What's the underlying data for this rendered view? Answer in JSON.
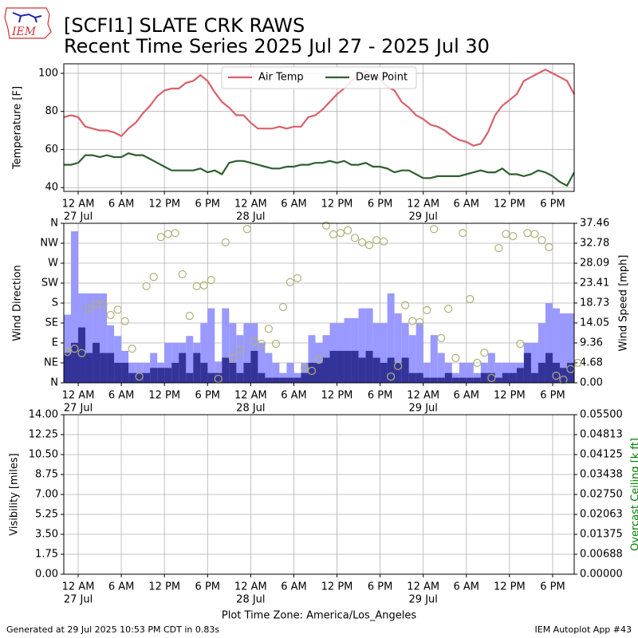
{
  "header": {
    "title": "[SCFI1] SLATE CRK RAWS",
    "subtitle": "Recent Time Series 2025 Jul 27 - 2025 Jul 30",
    "logo_text": "IEM"
  },
  "footer": {
    "generated": "Generated at 29 Jul 2025 10:53 PM CDT in 0.83s",
    "app": "IEM Autoplot App #43",
    "xlabel": "Plot Time Zone: America/Los_Angeles"
  },
  "chart_data": [
    {
      "type": "line",
      "ylabel": "Temperature [F]",
      "grid": true,
      "legend": "upper center",
      "xlim": [
        "2025-07-26 22:00",
        "2025-07-29 21:00"
      ],
      "xticks": [
        {
          "value": "2025-07-27 00:00",
          "label": "12 AM"
        },
        {
          "value": "2025-07-27 06:00",
          "label": "6 AM"
        },
        {
          "value": "2025-07-27 12:00",
          "label": "12 PM"
        },
        {
          "value": "2025-07-27 18:00",
          "label": "6 PM"
        },
        {
          "value": "2025-07-28 00:00",
          "label": "12 AM"
        },
        {
          "value": "2025-07-28 06:00",
          "label": "6 AM"
        },
        {
          "value": "2025-07-28 12:00",
          "label": "12 PM"
        },
        {
          "value": "2025-07-28 18:00",
          "label": "6 PM"
        },
        {
          "value": "2025-07-29 00:00",
          "label": "12 AM"
        },
        {
          "value": "2025-07-29 06:00",
          "label": "6 AM"
        },
        {
          "value": "2025-07-29 12:00",
          "label": "12 PM"
        },
        {
          "value": "2025-07-29 18:00",
          "label": "6 PM"
        }
      ],
      "xtick_dates": [
        {
          "value": "2025-07-27 00:00",
          "label": "27 Jul"
        },
        {
          "value": "2025-07-28 00:00",
          "label": "28 Jul"
        },
        {
          "value": "2025-07-29 00:00",
          "label": "29 Jul"
        }
      ],
      "ylim": [
        38,
        105
      ],
      "yticks": [
        40,
        60,
        80,
        100
      ],
      "x": [
        "2025-07-26 22:00",
        "2025-07-26 23:00",
        "2025-07-27 00:00",
        "2025-07-27 01:00",
        "2025-07-27 02:00",
        "2025-07-27 03:00",
        "2025-07-27 04:00",
        "2025-07-27 05:00",
        "2025-07-27 06:00",
        "2025-07-27 07:00",
        "2025-07-27 08:00",
        "2025-07-27 09:00",
        "2025-07-27 10:00",
        "2025-07-27 11:00",
        "2025-07-27 12:00",
        "2025-07-27 13:00",
        "2025-07-27 14:00",
        "2025-07-27 15:00",
        "2025-07-27 16:00",
        "2025-07-27 17:00",
        "2025-07-27 18:00",
        "2025-07-27 19:00",
        "2025-07-27 20:00",
        "2025-07-27 21:00",
        "2025-07-27 22:00",
        "2025-07-27 23:00",
        "2025-07-28 00:00",
        "2025-07-28 01:00",
        "2025-07-28 02:00",
        "2025-07-28 03:00",
        "2025-07-28 04:00",
        "2025-07-28 05:00",
        "2025-07-28 06:00",
        "2025-07-28 07:00",
        "2025-07-28 08:00",
        "2025-07-28 09:00",
        "2025-07-28 10:00",
        "2025-07-28 11:00",
        "2025-07-28 12:00",
        "2025-07-28 13:00",
        "2025-07-28 14:00",
        "2025-07-28 15:00",
        "2025-07-28 16:00",
        "2025-07-28 17:00",
        "2025-07-28 18:00",
        "2025-07-28 19:00",
        "2025-07-28 20:00",
        "2025-07-28 21:00",
        "2025-07-28 22:00",
        "2025-07-28 23:00",
        "2025-07-29 00:00",
        "2025-07-29 01:00",
        "2025-07-29 02:00",
        "2025-07-29 03:00",
        "2025-07-29 04:00",
        "2025-07-29 05:00",
        "2025-07-29 06:00",
        "2025-07-29 07:00",
        "2025-07-29 08:00",
        "2025-07-29 09:00",
        "2025-07-29 10:00",
        "2025-07-29 11:00",
        "2025-07-29 12:00",
        "2025-07-29 13:00",
        "2025-07-29 14:00",
        "2025-07-29 15:00",
        "2025-07-29 16:00",
        "2025-07-29 17:00",
        "2025-07-29 18:00",
        "2025-07-29 19:00",
        "2025-07-29 20:00",
        "2025-07-29 21:00"
      ],
      "series": [
        {
          "name": "Air Temp",
          "color": "#d9606a",
          "values": [
            77,
            78,
            77,
            72,
            71,
            70,
            70,
            69,
            67,
            71,
            74,
            79,
            83,
            88,
            91,
            92,
            92,
            95,
            96,
            99,
            96,
            90,
            85,
            82,
            78,
            78,
            74,
            71,
            71,
            71,
            72,
            71,
            72,
            72,
            77,
            78,
            81,
            85,
            89,
            92,
            96,
            99,
            101,
            99,
            97,
            93,
            91,
            85,
            82,
            78,
            76,
            73,
            72,
            70,
            67,
            65,
            64,
            62,
            63,
            69,
            78,
            83,
            86,
            89,
            96,
            98,
            100,
            102,
            100,
            98,
            96,
            89
          ]
        },
        {
          "name": "Dew Point",
          "color": "#2f5f2f",
          "values": [
            52,
            52,
            53,
            57,
            57,
            56,
            57,
            56,
            56,
            58,
            57,
            57,
            55,
            53,
            51,
            49,
            49,
            49,
            49,
            50,
            48,
            49,
            47,
            53,
            54,
            54,
            53,
            52,
            51,
            50,
            50,
            51,
            51,
            52,
            52,
            53,
            53,
            54,
            53,
            54,
            52,
            52,
            53,
            51,
            51,
            50,
            48,
            49,
            49,
            47,
            45,
            45,
            46,
            46,
            46,
            46,
            47,
            48,
            49,
            48,
            48,
            50,
            47,
            47,
            46,
            47,
            49,
            48,
            46,
            43,
            41,
            48
          ]
        }
      ]
    },
    {
      "type": "bar",
      "ylabel": "Wind Direction",
      "y2label": "Wind Speed [mph]",
      "grid": true,
      "xlim": [
        "2025-07-26 22:00",
        "2025-07-29 21:00"
      ],
      "xticks": [
        {
          "value": "2025-07-27 00:00",
          "label": "12 AM"
        },
        {
          "value": "2025-07-27 06:00",
          "label": "6 AM"
        },
        {
          "value": "2025-07-27 12:00",
          "label": "12 PM"
        },
        {
          "value": "2025-07-27 18:00",
          "label": "6 PM"
        },
        {
          "value": "2025-07-28 00:00",
          "label": "12 AM"
        },
        {
          "value": "2025-07-28 06:00",
          "label": "6 AM"
        },
        {
          "value": "2025-07-28 12:00",
          "label": "12 PM"
        },
        {
          "value": "2025-07-28 18:00",
          "label": "6 PM"
        },
        {
          "value": "2025-07-29 00:00",
          "label": "12 AM"
        },
        {
          "value": "2025-07-29 06:00",
          "label": "6 AM"
        },
        {
          "value": "2025-07-29 12:00",
          "label": "12 PM"
        },
        {
          "value": "2025-07-29 18:00",
          "label": "6 PM"
        }
      ],
      "xtick_dates": [
        {
          "value": "2025-07-27 00:00",
          "label": "27 Jul"
        },
        {
          "value": "2025-07-28 00:00",
          "label": "28 Jul"
        },
        {
          "value": "2025-07-29 00:00",
          "label": "29 Jul"
        }
      ],
      "ylim": [
        0,
        360
      ],
      "yticks": [
        {
          "value": 0,
          "label": "N"
        },
        {
          "value": 45,
          "label": "NE"
        },
        {
          "value": 90,
          "label": "E"
        },
        {
          "value": 135,
          "label": "SE"
        },
        {
          "value": 180,
          "label": "S"
        },
        {
          "value": 225,
          "label": "SW"
        },
        {
          "value": 270,
          "label": "W"
        },
        {
          "value": 315,
          "label": "NW"
        },
        {
          "value": 360,
          "label": "N"
        }
      ],
      "y2lim": [
        0,
        37.46
      ],
      "y2ticks": [
        {
          "value": 0,
          "label": "0.00"
        },
        {
          "value": 4.68,
          "label": "4.68"
        },
        {
          "value": 9.36,
          "label": "9.36"
        },
        {
          "value": 14.05,
          "label": "14.05"
        },
        {
          "value": 18.73,
          "label": "18.73"
        },
        {
          "value": 23.41,
          "label": "23.41"
        },
        {
          "value": 28.09,
          "label": "28.09"
        },
        {
          "value": 32.78,
          "label": "32.78"
        },
        {
          "value": 37.46,
          "label": "37.46"
        }
      ],
      "x": [
        "2025-07-26 22:00",
        "2025-07-26 23:00",
        "2025-07-27 00:00",
        "2025-07-27 01:00",
        "2025-07-27 02:00",
        "2025-07-27 03:00",
        "2025-07-27 04:00",
        "2025-07-27 05:00",
        "2025-07-27 06:00",
        "2025-07-27 07:00",
        "2025-07-27 08:00",
        "2025-07-27 09:00",
        "2025-07-27 10:00",
        "2025-07-27 11:00",
        "2025-07-27 12:00",
        "2025-07-27 13:00",
        "2025-07-27 14:00",
        "2025-07-27 15:00",
        "2025-07-27 16:00",
        "2025-07-27 17:00",
        "2025-07-27 18:00",
        "2025-07-27 19:00",
        "2025-07-27 20:00",
        "2025-07-27 21:00",
        "2025-07-27 22:00",
        "2025-07-27 23:00",
        "2025-07-28 00:00",
        "2025-07-28 01:00",
        "2025-07-28 02:00",
        "2025-07-28 03:00",
        "2025-07-28 04:00",
        "2025-07-28 05:00",
        "2025-07-28 06:00",
        "2025-07-28 07:00",
        "2025-07-28 08:00",
        "2025-07-28 09:00",
        "2025-07-28 10:00",
        "2025-07-28 11:00",
        "2025-07-28 12:00",
        "2025-07-28 13:00",
        "2025-07-28 14:00",
        "2025-07-28 15:00",
        "2025-07-28 16:00",
        "2025-07-28 17:00",
        "2025-07-28 18:00",
        "2025-07-28 19:00",
        "2025-07-28 20:00",
        "2025-07-28 21:00",
        "2025-07-28 22:00",
        "2025-07-28 23:00",
        "2025-07-29 00:00",
        "2025-07-29 01:00",
        "2025-07-29 02:00",
        "2025-07-29 03:00",
        "2025-07-29 04:00",
        "2025-07-29 05:00",
        "2025-07-29 06:00",
        "2025-07-29 07:00",
        "2025-07-29 08:00",
        "2025-07-29 09:00",
        "2025-07-29 10:00",
        "2025-07-29 11:00",
        "2025-07-29 12:00",
        "2025-07-29 13:00",
        "2025-07-29 14:00",
        "2025-07-29 15:00",
        "2025-07-29 16:00",
        "2025-07-29 17:00",
        "2025-07-29 18:00",
        "2025-07-29 19:00",
        "2025-07-29 20:00",
        "2025-07-29 21:00"
      ],
      "series": [
        {
          "color": "#9999ff",
          "axis": "y2",
          "values": [
            16,
            35.6,
            21,
            21,
            21,
            21,
            13.5,
            11,
            7.5,
            4.7,
            4.7,
            4.7,
            7,
            4.7,
            9.4,
            9.4,
            9.4,
            11,
            9.4,
            14,
            17.5,
            5,
            17.5,
            14,
            11.2,
            14,
            14,
            9.4,
            7,
            4.7,
            2.3,
            4.7,
            2.3,
            4.7,
            11.2,
            9.4,
            11.2,
            14,
            14,
            15.2,
            15.2,
            17.5,
            17.5,
            14,
            14,
            21,
            16.3,
            14,
            11.2,
            14,
            4.7,
            11.2,
            7,
            4.7,
            2.3,
            4.7,
            4.7,
            2.3,
            4.7,
            7,
            4.7,
            4.7,
            4.7,
            4.7,
            9.4,
            9.4,
            14,
            18.7,
            17.5,
            16.3,
            16.3,
            11
          ]
        },
        {
          "color": "#333399",
          "axis": "y2",
          "values": [
            7,
            9.4,
            13,
            7,
            9.4,
            7,
            7,
            4.7,
            4.7,
            2.3,
            2.3,
            2.3,
            3.5,
            3.5,
            3.5,
            4.7,
            7,
            2.3,
            7,
            4.7,
            2.3,
            2.3,
            5.9,
            4.7,
            2.3,
            4.7,
            7.5,
            2.3,
            1.2,
            1.2,
            1.2,
            1.2,
            1.2,
            2.3,
            4.7,
            4.7,
            5.9,
            7.5,
            7.5,
            7.5,
            7.5,
            5.9,
            7.5,
            5.9,
            4.7,
            5.9,
            4.7,
            5.9,
            2.3,
            2.3,
            1.2,
            1.2,
            1.2,
            2.3,
            1.2,
            1.2,
            1.2,
            1.2,
            2.3,
            2.3,
            1.2,
            2.3,
            2.3,
            3.5,
            7,
            2.3,
            4.7,
            7,
            4.7,
            3.5,
            4.7,
            3.5
          ]
        },
        {
          "type": "scatter",
          "color": "#b0b07a",
          "values": [
            70,
            77,
            67,
            167,
            178,
            176,
            153,
            165,
            139,
            77,
            14,
            218,
            239,
            329,
            336,
            338,
            245,
            151,
            218,
            220,
            232,
            9,
            317,
            56,
            74,
            347,
            94,
            88,
            122,
            88,
            171,
            227,
            236,
            34,
            27,
            52,
            355,
            335,
            338,
            344,
            327,
            317,
            311,
            322,
            319,
            14,
            38,
            175,
            139,
            137,
            164,
            347,
            101,
            167,
            56,
            338,
            189,
            45,
            68,
            11,
            304,
            336,
            331,
            88,
            338,
            336,
            322,
            306,
            16,
            7,
            31,
            45
          ]
        }
      ]
    },
    {
      "type": "line",
      "ylabel": "Visibility [miles]",
      "y2label": "Overcast Ceiling [k ft]",
      "y2label_color": "green",
      "grid": true,
      "xlim": [
        "2025-07-26 22:00",
        "2025-07-29 21:00"
      ],
      "xticks": [
        {
          "value": "2025-07-27 00:00",
          "label": "12 AM"
        },
        {
          "value": "2025-07-27 06:00",
          "label": "6 AM"
        },
        {
          "value": "2025-07-27 12:00",
          "label": "12 PM"
        },
        {
          "value": "2025-07-27 18:00",
          "label": "6 PM"
        },
        {
          "value": "2025-07-28 00:00",
          "label": "12 AM"
        },
        {
          "value": "2025-07-28 06:00",
          "label": "6 AM"
        },
        {
          "value": "2025-07-28 12:00",
          "label": "12 PM"
        },
        {
          "value": "2025-07-28 18:00",
          "label": "6 PM"
        },
        {
          "value": "2025-07-29 00:00",
          "label": "12 AM"
        },
        {
          "value": "2025-07-29 06:00",
          "label": "6 AM"
        },
        {
          "value": "2025-07-29 12:00",
          "label": "12 PM"
        },
        {
          "value": "2025-07-29 18:00",
          "label": "6 PM"
        }
      ],
      "xtick_dates": [
        {
          "value": "2025-07-27 00:00",
          "label": "27 Jul"
        },
        {
          "value": "2025-07-28 00:00",
          "label": "28 Jul"
        },
        {
          "value": "2025-07-29 00:00",
          "label": "29 Jul"
        }
      ],
      "ylim": [
        0,
        14
      ],
      "yticks": [
        {
          "value": 0,
          "label": "0.00"
        },
        {
          "value": 1.75,
          "label": "1.75"
        },
        {
          "value": 3.5,
          "label": "3.50"
        },
        {
          "value": 5.25,
          "label": "5.25"
        },
        {
          "value": 7,
          "label": "7.00"
        },
        {
          "value": 8.75,
          "label": "8.75"
        },
        {
          "value": 10.5,
          "label": "10.50"
        },
        {
          "value": 12.25,
          "label": "12.25"
        },
        {
          "value": 14,
          "label": "14.00"
        }
      ],
      "y2lim": [
        0,
        0.055
      ],
      "y2ticks": [
        {
          "value": 0,
          "label": "0.00000"
        },
        {
          "value": 0.006875,
          "label": "0.00688"
        },
        {
          "value": 0.01375,
          "label": "0.01375"
        },
        {
          "value": 0.020625,
          "label": "0.02063"
        },
        {
          "value": 0.0275,
          "label": "0.02750"
        },
        {
          "value": 0.034375,
          "label": "0.03438"
        },
        {
          "value": 0.04125,
          "label": "0.04125"
        },
        {
          "value": 0.048125,
          "label": "0.04813"
        },
        {
          "value": 0.055,
          "label": "0.05500"
        }
      ],
      "series": []
    }
  ]
}
